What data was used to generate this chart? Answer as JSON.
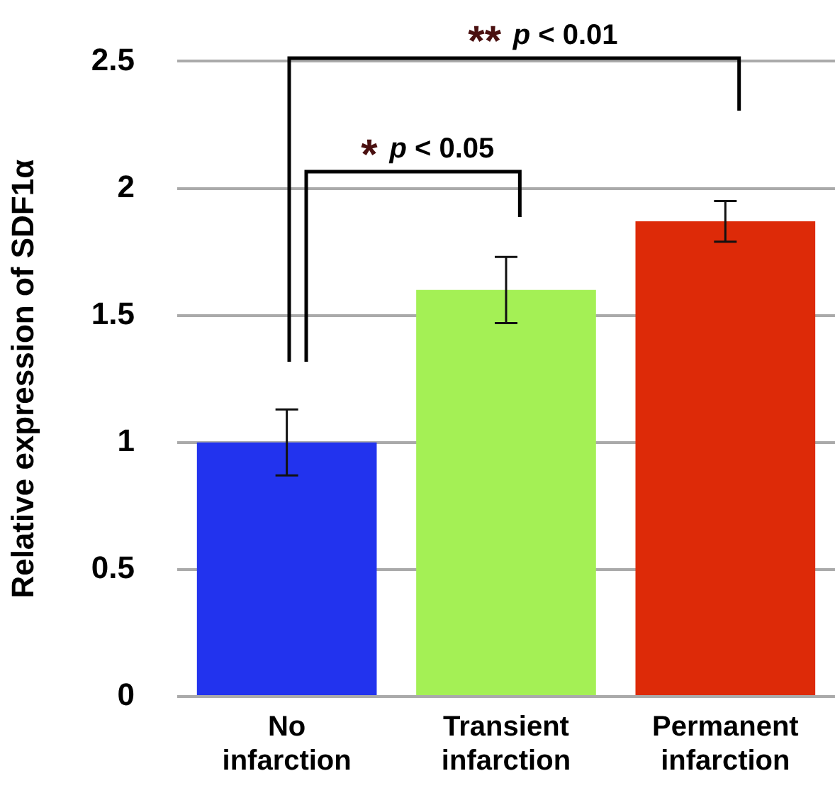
{
  "chart_data": {
    "type": "bar",
    "ylabel": "Relative expression of SDF1α",
    "categories": [
      "No infarction",
      "Transient infarction",
      "Permanent infarction"
    ],
    "values": [
      1.0,
      1.6,
      1.87
    ],
    "errors": [
      0.13,
      0.13,
      0.08
    ],
    "colors": [
      "#2233ee",
      "#a4f055",
      "#dd2a08"
    ],
    "ylim": [
      0,
      2.5
    ],
    "yticks": [
      0,
      0.5,
      1,
      1.5,
      2,
      2.5
    ],
    "grid": "y",
    "legend": false,
    "annotations": [
      "* p < 0.05",
      "** p < 0.01"
    ]
  }
}
